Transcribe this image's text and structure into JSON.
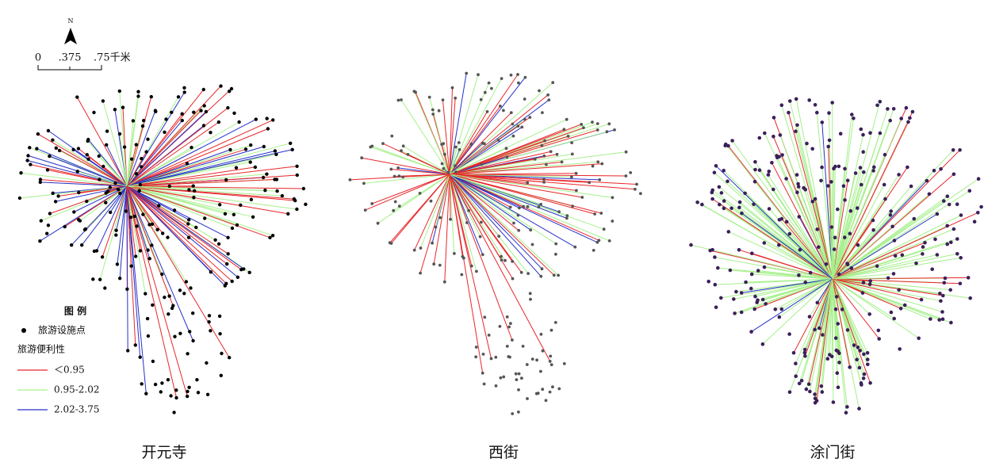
{
  "north_arrow": "N",
  "scale_bar": {
    "ticks": [
      "0",
      ".375",
      ".75千米"
    ]
  },
  "legend": {
    "title": "图 例",
    "point": "旅游设施点",
    "line_title": "旅游便利性",
    "classes": [
      {
        "label": "＜0.95",
        "color": "#e8262a"
      },
      {
        "label": "0.95-2.02",
        "color": "#a6f08c"
      },
      {
        "label": "2.02-3.75",
        "color": "#2631c8"
      }
    ]
  },
  "panels": [
    {
      "label": "开元寺"
    },
    {
      "label": "西街"
    },
    {
      "label": "涂门街"
    }
  ]
}
